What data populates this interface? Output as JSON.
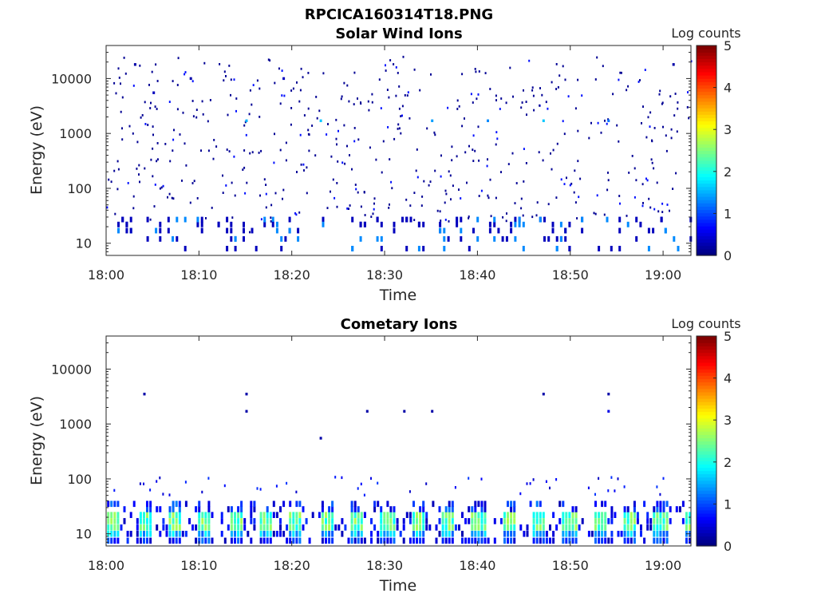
{
  "figure_title": "RPCICA160314T18.PNG",
  "chart_data": [
    {
      "type": "heatmap",
      "title": "Solar Wind Ions",
      "xlabel": "Time",
      "ylabel": "Energy (eV)",
      "x_ticks": [
        "18:00",
        "18:10",
        "18:20",
        "18:30",
        "18:40",
        "18:50",
        "19:00"
      ],
      "xlim": [
        "18:00",
        "19:03"
      ],
      "y_ticks": [
        "10",
        "100",
        "1000",
        "10000"
      ],
      "y_scale": "log",
      "ylim": [
        6,
        40000
      ],
      "colorbar": {
        "label": "Log counts",
        "ticks": [
          "0",
          "1",
          "2",
          "3",
          "4",
          "5"
        ],
        "range": [
          0,
          5
        ],
        "colormap": "jet"
      },
      "pattern": "scattered",
      "sparse_points": [
        {
          "t": "18:03",
          "e": 18000,
          "v": 0.2
        },
        {
          "t": "18:05",
          "e": 5500,
          "v": 0.3
        },
        {
          "t": "18:09",
          "e": 10000,
          "v": 0.2
        },
        {
          "t": "18:15",
          "e": 1700,
          "v": 1.5
        },
        {
          "t": "18:19",
          "e": 10000,
          "v": 0.3
        },
        {
          "t": "18:23",
          "e": 1700,
          "v": 1.6
        },
        {
          "t": "18:35",
          "e": 1700,
          "v": 1.4
        },
        {
          "t": "18:41",
          "e": 1700,
          "v": 1.3
        },
        {
          "t": "18:47",
          "e": 1700,
          "v": 1.6
        },
        {
          "t": "18:54",
          "e": 1700,
          "v": 1.2
        },
        {
          "t": "19:01",
          "e": 18000,
          "v": 0.2
        }
      ]
    },
    {
      "type": "heatmap",
      "title": "Cometary Ions",
      "xlabel": "Time",
      "ylabel": "Energy (eV)",
      "x_ticks": [
        "18:00",
        "18:10",
        "18:20",
        "18:30",
        "18:40",
        "18:50",
        "19:00"
      ],
      "xlim": [
        "18:00",
        "19:03"
      ],
      "y_ticks": [
        "10",
        "100",
        "1000",
        "10000"
      ],
      "y_scale": "log",
      "ylim": [
        6,
        40000
      ],
      "colorbar": {
        "label": "Log counts",
        "ticks": [
          "0",
          "1",
          "2",
          "3",
          "4",
          "5"
        ],
        "range": [
          0,
          5
        ],
        "colormap": "jet"
      },
      "pattern": "bands",
      "sparse_points": [
        {
          "t": "18:04",
          "e": 3500,
          "v": 0.2
        },
        {
          "t": "18:15",
          "e": 3500,
          "v": 0.2
        },
        {
          "t": "18:15",
          "e": 1700,
          "v": 0.2
        },
        {
          "t": "18:23",
          "e": 550,
          "v": 0.2
        },
        {
          "t": "18:28",
          "e": 1700,
          "v": 0.2
        },
        {
          "t": "18:32",
          "e": 1700,
          "v": 0.2
        },
        {
          "t": "18:35",
          "e": 1700,
          "v": 0.2
        },
        {
          "t": "18:47",
          "e": 3500,
          "v": 0.2
        },
        {
          "t": "18:54",
          "e": 3500,
          "v": 0.2
        },
        {
          "t": "18:54",
          "e": 1700,
          "v": 0.5
        }
      ]
    }
  ]
}
